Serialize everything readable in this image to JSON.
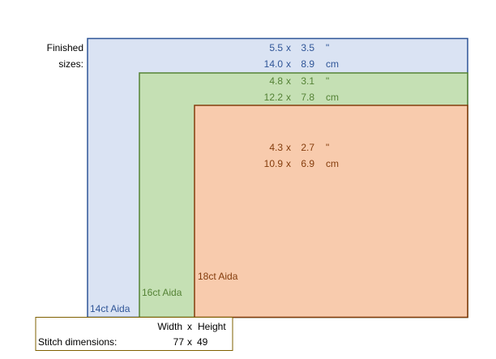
{
  "finished_label": [
    "Finished",
    "sizes:"
  ],
  "separator": "x",
  "unit_in": "\"",
  "unit_cm": "cm",
  "fabrics": [
    {
      "label": "14ct Aida",
      "inches": {
        "width": "5.5",
        "height": "3.5"
      },
      "cm": {
        "width": "14.0",
        "height": "8.9"
      }
    },
    {
      "label": "16ct Aida",
      "inches": {
        "width": "4.8",
        "height": "3.1"
      },
      "cm": {
        "width": "12.2",
        "height": "7.8"
      }
    },
    {
      "label": "18ct Aida",
      "inches": {
        "width": "4.3",
        "height": "2.7"
      },
      "cm": {
        "width": "10.9",
        "height": "6.9"
      }
    }
  ],
  "stitch": {
    "width_header": "Width",
    "height_header": "Height",
    "label": "Stitch dimensions:",
    "width": 77,
    "height": 49
  }
}
